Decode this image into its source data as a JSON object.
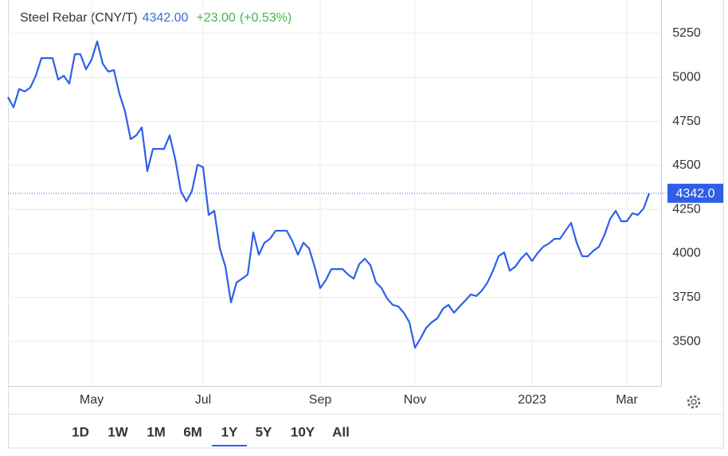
{
  "chart_data": {
    "type": "line",
    "title": "Steel Rebar (CNY/T)",
    "price": "4342.00",
    "change": "+23.00",
    "change_pct": "(+0.53%)",
    "last_value_label": "4342.0",
    "categories": [
      null,
      null,
      null,
      null,
      null,
      null,
      null,
      null,
      null,
      null,
      null,
      null,
      null,
      null,
      null,
      "May",
      null,
      null,
      null,
      null,
      null,
      null,
      null,
      null,
      null,
      null,
      null,
      null,
      null,
      null,
      null,
      null,
      null,
      null,
      null,
      "Jul",
      null,
      null,
      null,
      null,
      null,
      null,
      null,
      null,
      null,
      null,
      null,
      null,
      null,
      null,
      null,
      null,
      null,
      null,
      null,
      null,
      "Sep",
      null,
      null,
      null,
      null,
      null,
      null,
      null,
      null,
      null,
      null,
      null,
      null,
      null,
      null,
      null,
      null,
      "Nov",
      null,
      null,
      null,
      null,
      null,
      null,
      null,
      null,
      null,
      null,
      null,
      null,
      null,
      null,
      null,
      null,
      null,
      null,
      null,
      null,
      "2023",
      null,
      null,
      null,
      null,
      null,
      null,
      null,
      null,
      null,
      null,
      null,
      null,
      null,
      null,
      null,
      null,
      "Mar",
      null,
      null,
      null,
      null
    ],
    "series": [
      {
        "name": "Steel Rebar",
        "color": "#2f5fe8",
        "values": [
          4888,
          4830,
          4934,
          4920,
          4942,
          5010,
          5110,
          5110,
          5110,
          4988,
          5010,
          4965,
          5132,
          5132,
          5046,
          5101,
          5205,
          5078,
          5033,
          5042,
          4906,
          4807,
          4649,
          4671,
          4716,
          4468,
          4594,
          4594,
          4594,
          4671,
          4536,
          4355,
          4296,
          4355,
          4504,
          4490,
          4219,
          4242,
          4029,
          3925,
          3722,
          3835,
          3857,
          3880,
          4119,
          3993,
          4061,
          4083,
          4129,
          4129,
          4129,
          4070,
          3993,
          4061,
          4029,
          3925,
          3803,
          3848,
          3911,
          3911,
          3911,
          3880,
          3857,
          3939,
          3970,
          3934,
          3835,
          3803,
          3744,
          3708,
          3699,
          3663,
          3609,
          3464,
          3518,
          3577,
          3609,
          3631,
          3685,
          3708,
          3663,
          3699,
          3731,
          3767,
          3758,
          3789,
          3835,
          3902,
          3984,
          4006,
          3902,
          3925,
          3970,
          4002,
          3957,
          4002,
          4038,
          4056,
          4083,
          4083,
          4129,
          4174,
          4061,
          3984,
          3984,
          4015,
          4038,
          4106,
          4196,
          4242,
          4183,
          4183,
          4228,
          4219,
          4255,
          4342
        ]
      }
    ],
    "ylim": [
      3247,
      5440
    ],
    "yticks": [
      3500,
      3750,
      4000,
      4250,
      4500,
      4750,
      5000,
      5250
    ],
    "grid": true
  },
  "range_buttons": [
    "1D",
    "1W",
    "1M",
    "6M",
    "1Y",
    "5Y",
    "10Y",
    "All"
  ],
  "active_range": "1Y"
}
